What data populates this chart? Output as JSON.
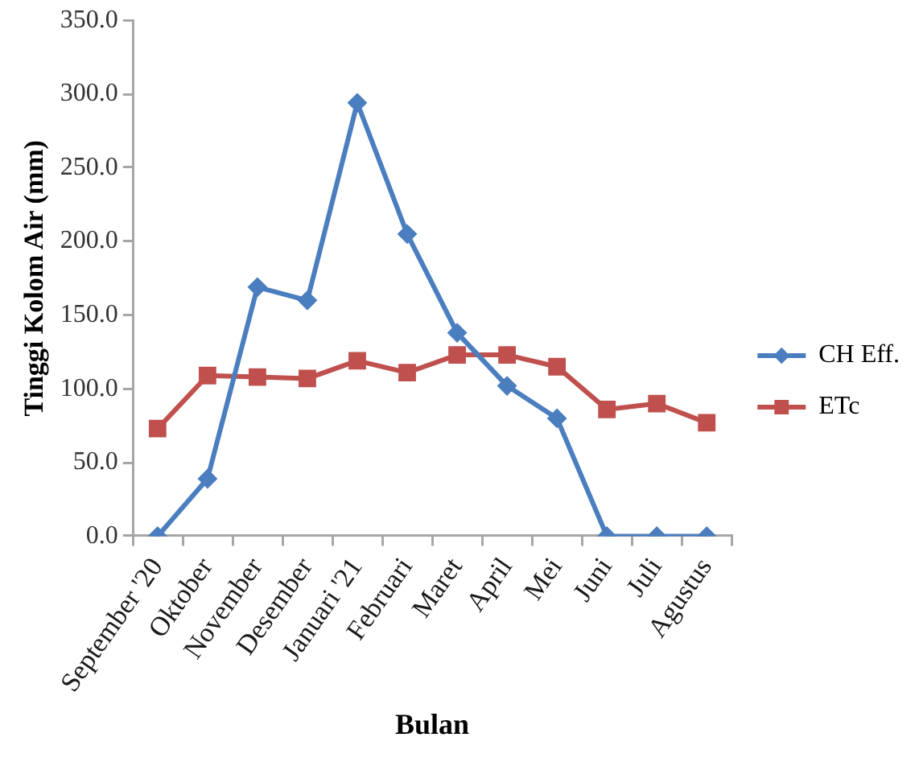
{
  "chart_data": {
    "type": "line",
    "categories": [
      "September '20",
      "Oktober",
      "November",
      "Desember",
      "Januari '21",
      "Februari",
      "Maret",
      "April",
      "Mei",
      "Juni",
      "Juli",
      "Agustus"
    ],
    "series": [
      {
        "name": "CH Eff.",
        "color": "#4a7ebf",
        "marker": "diamond",
        "values": [
          0,
          39,
          169,
          160,
          294,
          205,
          138,
          102,
          80,
          0,
          0,
          0
        ]
      },
      {
        "name": "ETc",
        "color": "#c0504d",
        "marker": "square",
        "values": [
          73,
          109,
          108,
          107,
          119,
          111,
          123,
          123,
          115,
          86,
          90,
          77
        ]
      }
    ],
    "xlabel": "Bulan",
    "ylabel": "Tinggi Kolom Air (mm)",
    "ylim": [
      0,
      350
    ],
    "yticks": [
      {
        "value": 0,
        "label": "0.0"
      },
      {
        "value": 50,
        "label": "50.0"
      },
      {
        "value": 100,
        "label": "100.0"
      },
      {
        "value": 150,
        "label": "150.0"
      },
      {
        "value": 200,
        "label": "200.0"
      },
      {
        "value": 250,
        "label": "250.0"
      },
      {
        "value": 300,
        "label": "300.0"
      },
      {
        "value": 350,
        "label": "350.0"
      }
    ],
    "legend": "right",
    "line_style": "solid"
  }
}
